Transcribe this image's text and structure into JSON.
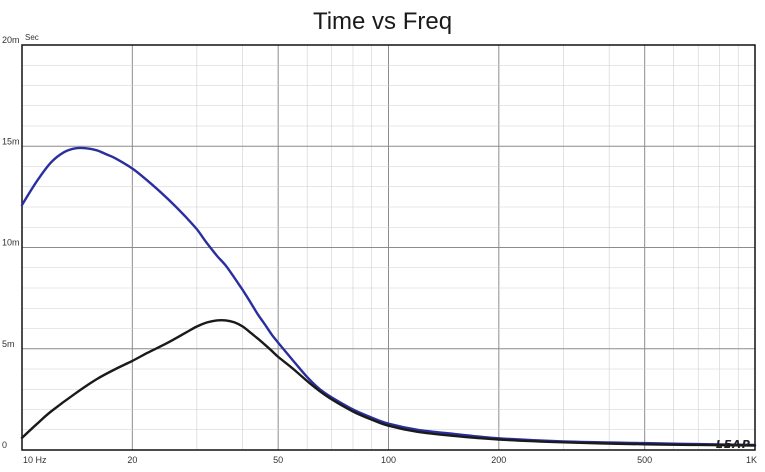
{
  "chart_data": {
    "type": "line",
    "title": "Time vs Freq",
    "ylabel": "Sec",
    "xlabel": "",
    "x_scale": "log",
    "xlim": [
      10,
      1000
    ],
    "ylim": [
      0,
      0.02
    ],
    "grid": true,
    "x_ticks": [
      {
        "value": 10,
        "label": "10 Hz"
      },
      {
        "value": 20,
        "label": "20"
      },
      {
        "value": 50,
        "label": "50"
      },
      {
        "value": 100,
        "label": "100"
      },
      {
        "value": 200,
        "label": "200"
      },
      {
        "value": 500,
        "label": "500"
      },
      {
        "value": 1000,
        "label": "1K"
      }
    ],
    "y_ticks": [
      {
        "value": 0,
        "label": "0"
      },
      {
        "value": 0.005,
        "label": "5m"
      },
      {
        "value": 0.01,
        "label": "10m"
      },
      {
        "value": 0.015,
        "label": "15m"
      },
      {
        "value": 0.02,
        "label": "20m"
      }
    ],
    "logo_text": "LEAP",
    "series": [
      {
        "color": "#2b2f9e",
        "x": [
          10,
          11,
          12,
          13,
          14,
          15,
          16,
          17,
          18,
          20,
          22,
          24,
          26,
          28,
          30,
          32,
          34,
          36,
          38,
          40,
          42,
          44,
          46,
          48,
          50,
          55,
          60,
          65,
          70,
          80,
          90,
          100,
          120,
          150,
          200,
          300,
          500,
          700,
          1000
        ],
        "y": [
          0.0121,
          0.0133,
          0.0142,
          0.0147,
          0.0149,
          0.0149,
          0.0148,
          0.0146,
          0.0144,
          0.0139,
          0.0133,
          0.0127,
          0.0121,
          0.0115,
          0.0109,
          0.0102,
          0.0096,
          0.0091,
          0.0085,
          0.0079,
          0.0073,
          0.0067,
          0.0062,
          0.0057,
          0.0053,
          0.0044,
          0.0036,
          0.003,
          0.0026,
          0.002,
          0.0016,
          0.0013,
          0.001,
          0.0008,
          0.00058,
          0.00042,
          0.00034,
          0.00029,
          0.00025
        ]
      },
      {
        "color": "#1a1a1a",
        "x": [
          10,
          11,
          12,
          14,
          16,
          18,
          20,
          22,
          25,
          28,
          30,
          32,
          34,
          36,
          38,
          40,
          42,
          44,
          46,
          48,
          50,
          55,
          60,
          65,
          70,
          80,
          90,
          100,
          120,
          150,
          200,
          300,
          500,
          700,
          1000
        ],
        "y": [
          0.0006,
          0.0013,
          0.0019,
          0.0028,
          0.0035,
          0.004,
          0.0044,
          0.0048,
          0.0053,
          0.0058,
          0.0061,
          0.0063,
          0.0064,
          0.0064,
          0.0063,
          0.0061,
          0.0058,
          0.0055,
          0.0052,
          0.0049,
          0.0046,
          0.004,
          0.0034,
          0.0029,
          0.0025,
          0.0019,
          0.0015,
          0.0012,
          0.0009,
          0.0007,
          0.00052,
          0.00038,
          0.00028,
          0.00025,
          0.00022
        ]
      }
    ]
  }
}
